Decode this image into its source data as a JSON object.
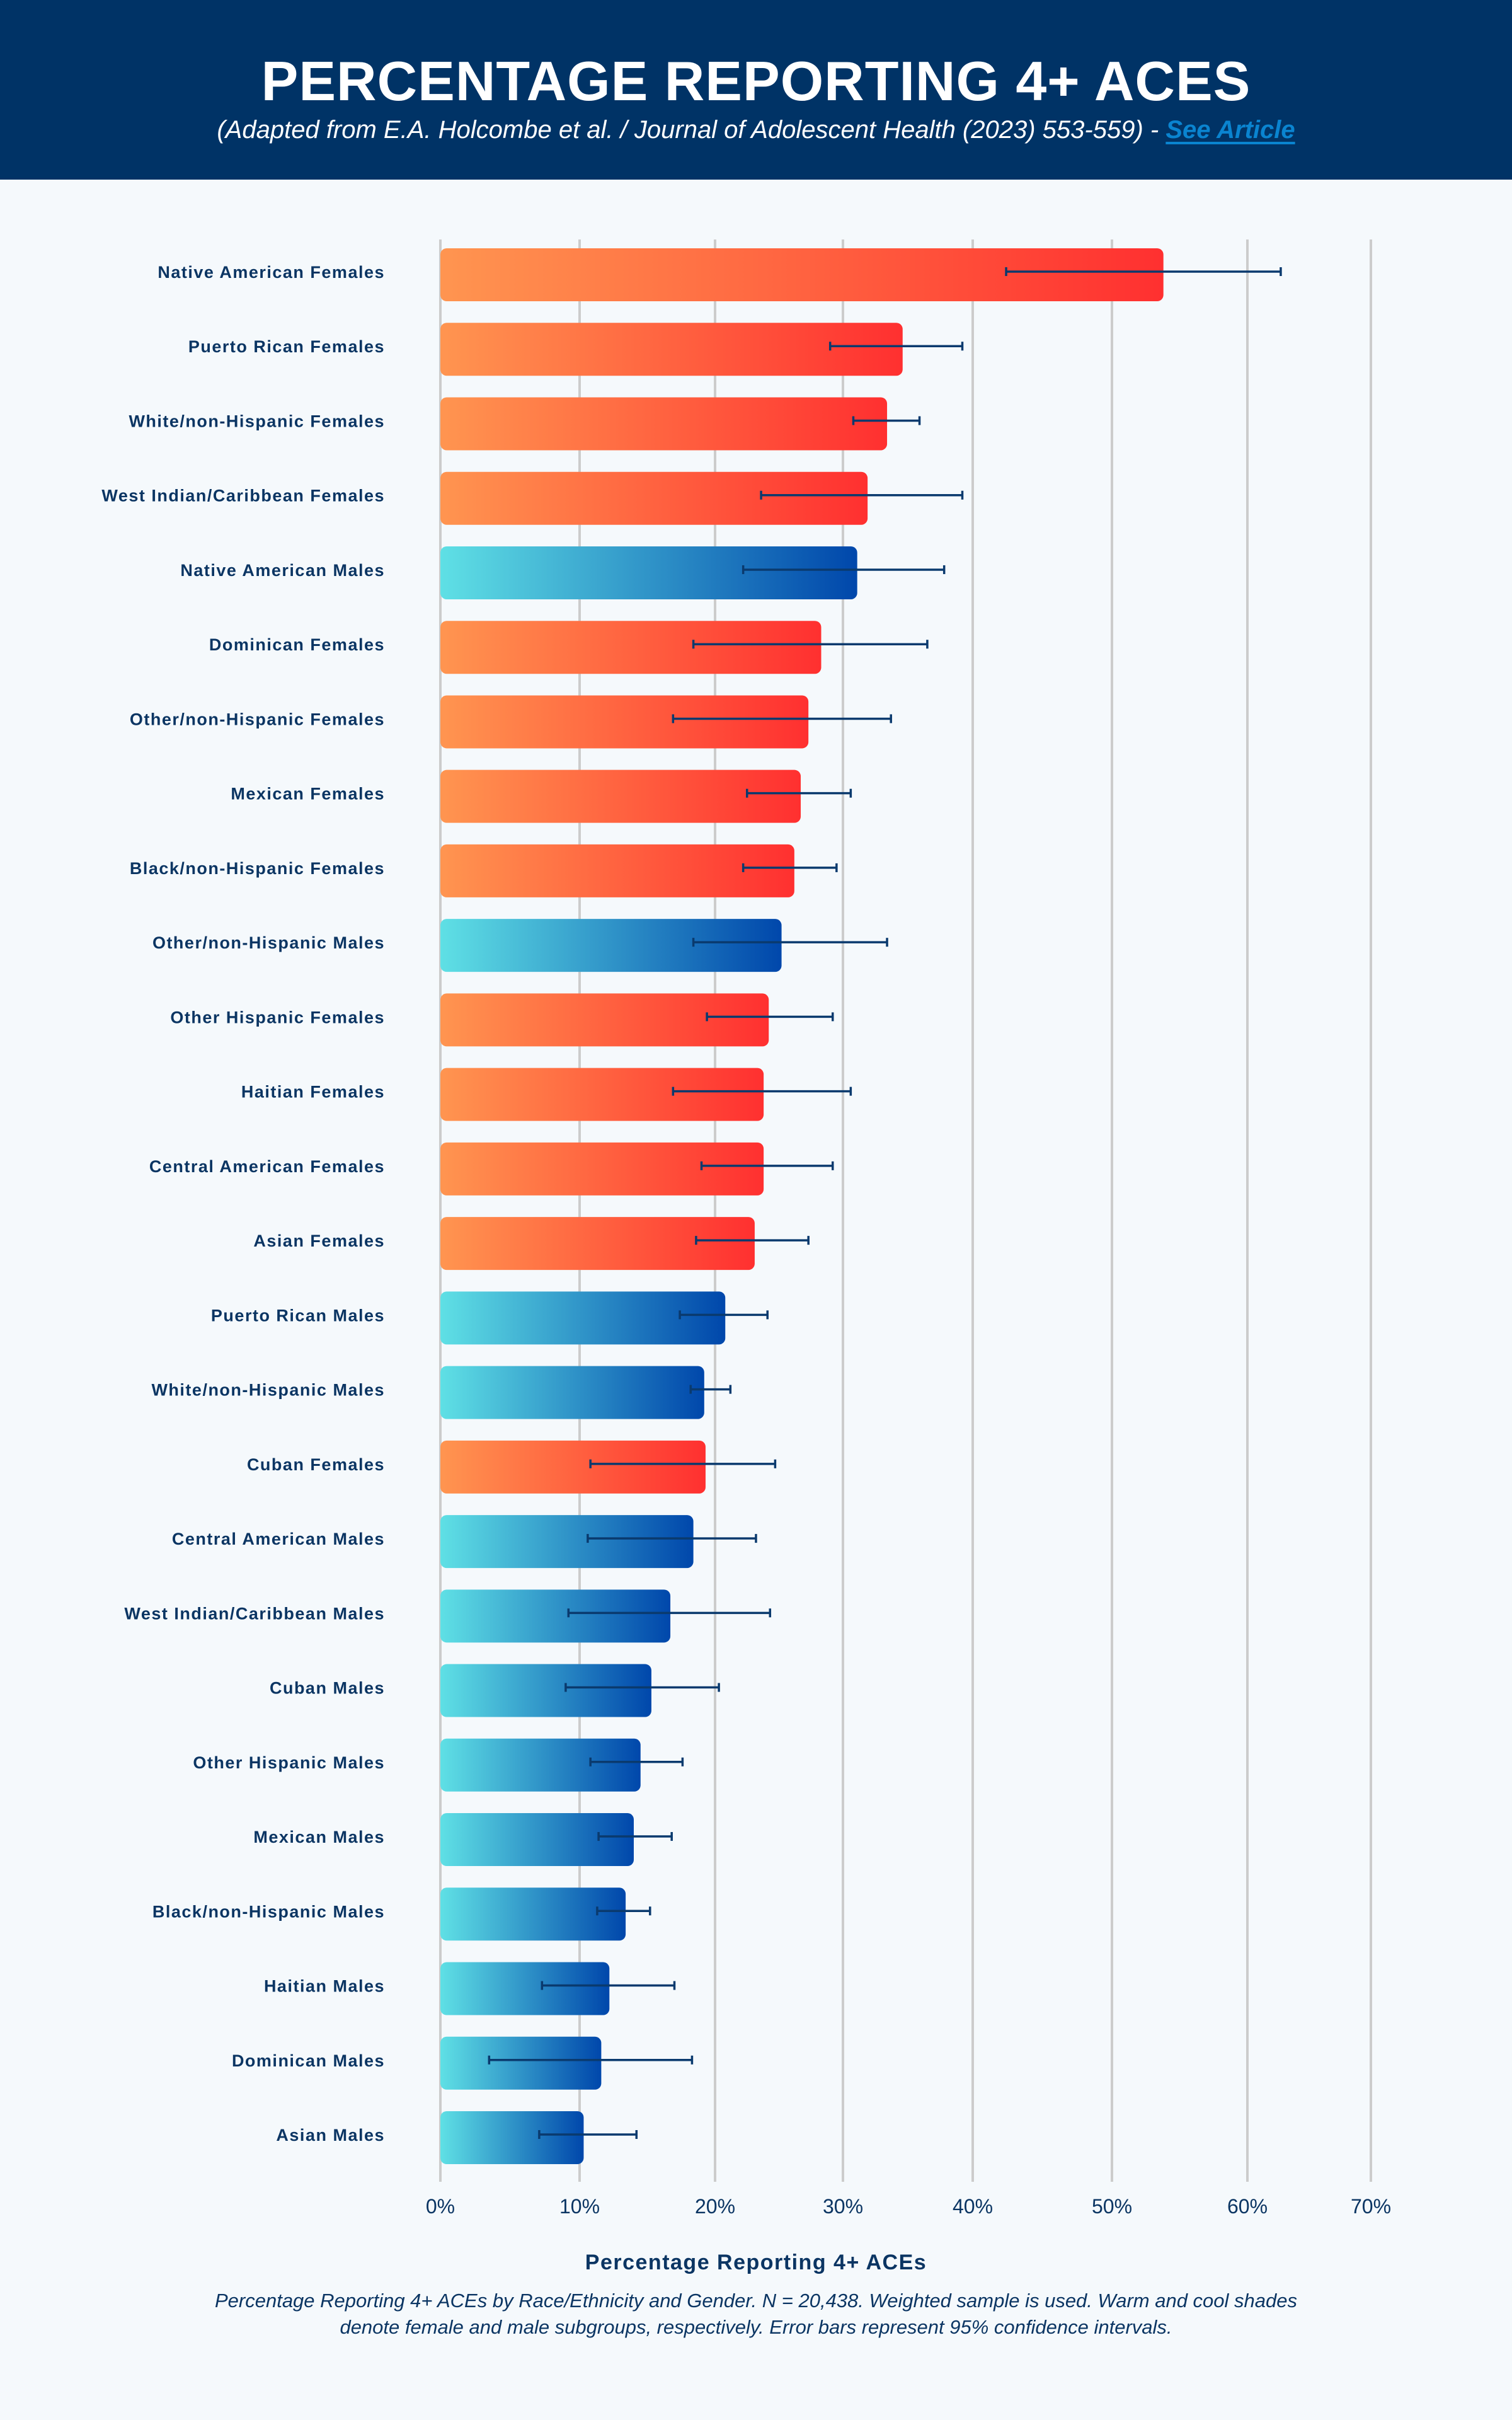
{
  "header": {
    "title": "PERCENTAGE REPORTING 4+ ACES",
    "subtitle_text": "(Adapted from E.A. Holcombe et al. / Journal of Adolescent Health (2023) 553-559) - ",
    "link_label": "See Article"
  },
  "colors": {
    "header_bg": "#003366",
    "page_bg": "#F5F9FC",
    "female_gradient": [
      "#FF9550",
      "#FF3030"
    ],
    "male_gradient": [
      "#5FE0E5",
      "#0047AB"
    ],
    "error_bar": "#0A3A6E",
    "gridline": "#CCCCCC",
    "link": "#0A84D0"
  },
  "footer": {
    "caption": "Percentage Reporting 4+ ACEs by Race/Ethnicity and Gender. N = 20,438. Weighted sample is used. Warm and cool shades denote female and male subgroups, respectively. Error bars represent 95% confidence intervals."
  },
  "chart_data": {
    "type": "bar",
    "orientation": "horizontal",
    "title": "PERCENTAGE REPORTING 4+ ACES",
    "xlabel": "Percentage Reporting 4+ ACEs",
    "ylabel": "",
    "xlim": [
      0,
      70
    ],
    "x_ticks": [
      0,
      10,
      20,
      30,
      40,
      50,
      60,
      70
    ],
    "x_tick_labels": [
      "0%",
      "10%",
      "20%",
      "30%",
      "40%",
      "50%",
      "60%",
      "70%"
    ],
    "grid": "vertical",
    "legend": "none (color encodes gender: warm = female, cool = male)",
    "units": "%",
    "bars": [
      {
        "label": "Native American Females",
        "group": "female",
        "value": 53.8,
        "ci_low": 42.4,
        "ci_high": 62.7
      },
      {
        "label": "Puerto Rican Females",
        "group": "female",
        "value": 34.6,
        "ci_low": 29.0,
        "ci_high": 39.2
      },
      {
        "label": "White/non-Hispanic Females",
        "group": "female",
        "value": 33.4,
        "ci_low": 30.8,
        "ci_high": 35.9
      },
      {
        "label": "West Indian/Caribbean Females",
        "group": "female",
        "value": 31.9,
        "ci_low": 23.6,
        "ci_high": 39.2
      },
      {
        "label": "Native American Males",
        "group": "male",
        "value": 31.1,
        "ci_low": 22.2,
        "ci_high": 37.8
      },
      {
        "label": "Dominican Females",
        "group": "female",
        "value": 28.3,
        "ci_low": 18.4,
        "ci_high": 36.5
      },
      {
        "label": "Other/non-Hispanic Females",
        "group": "female",
        "value": 27.3,
        "ci_low": 16.9,
        "ci_high": 33.7
      },
      {
        "label": "Mexican Females",
        "group": "female",
        "value": 26.7,
        "ci_low": 22.5,
        "ci_high": 30.6
      },
      {
        "label": "Black/non-Hispanic Females",
        "group": "female",
        "value": 26.2,
        "ci_low": 22.2,
        "ci_high": 29.5
      },
      {
        "label": "Other/non-Hispanic Males",
        "group": "male",
        "value": 25.2,
        "ci_low": 18.4,
        "ci_high": 33.4
      },
      {
        "label": "Other Hispanic Females",
        "group": "female",
        "value": 24.2,
        "ci_low": 19.4,
        "ci_high": 29.2
      },
      {
        "label": "Haitian Females",
        "group": "female",
        "value": 23.8,
        "ci_low": 16.9,
        "ci_high": 30.6
      },
      {
        "label": "Central American Females",
        "group": "female",
        "value": 23.8,
        "ci_low": 19.0,
        "ci_high": 29.2
      },
      {
        "label": "Asian Females",
        "group": "female",
        "value": 23.1,
        "ci_low": 18.6,
        "ci_high": 27.3
      },
      {
        "label": "Puerto Rican Males",
        "group": "male",
        "value": 20.8,
        "ci_low": 17.4,
        "ci_high": 24.1
      },
      {
        "label": "White/non-Hispanic Males",
        "group": "male",
        "value": 19.2,
        "ci_low": 18.2,
        "ci_high": 21.2
      },
      {
        "label": "Cuban Females",
        "group": "female",
        "value": 19.3,
        "ci_low": 10.8,
        "ci_high": 24.7
      },
      {
        "label": "Central American Males",
        "group": "male",
        "value": 18.4,
        "ci_low": 10.6,
        "ci_high": 23.2
      },
      {
        "label": "West Indian/Caribbean Males",
        "group": "male",
        "value": 16.7,
        "ci_low": 9.2,
        "ci_high": 24.3
      },
      {
        "label": "Cuban Males",
        "group": "male",
        "value": 15.3,
        "ci_low": 9.0,
        "ci_high": 20.3
      },
      {
        "label": "Other Hispanic Males",
        "group": "male",
        "value": 14.5,
        "ci_low": 10.8,
        "ci_high": 17.6
      },
      {
        "label": "Mexican Males",
        "group": "male",
        "value": 14.0,
        "ci_low": 11.4,
        "ci_high": 16.8
      },
      {
        "label": "Black/non-Hispanic Males",
        "group": "male",
        "value": 13.4,
        "ci_low": 11.3,
        "ci_high": 15.2
      },
      {
        "label": "Haitian Males",
        "group": "male",
        "value": 12.2,
        "ci_low": 7.3,
        "ci_high": 17.0
      },
      {
        "label": "Dominican Males",
        "group": "male",
        "value": 11.6,
        "ci_low": 3.5,
        "ci_high": 18.3
      },
      {
        "label": "Asian Males",
        "group": "male",
        "value": 10.3,
        "ci_low": 7.1,
        "ci_high": 14.2
      }
    ]
  }
}
